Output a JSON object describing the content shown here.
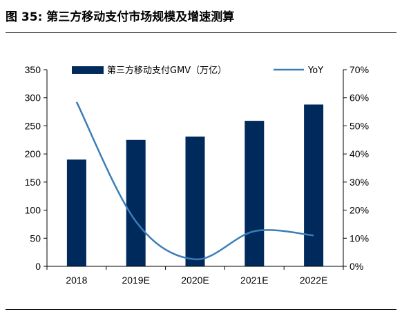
{
  "title": "图 35: 第三方移动支付市场规模及增速测算",
  "colors": {
    "bar": "#002A5C",
    "line": "#3A7DB8",
    "axis": "#000000"
  },
  "chart_data": {
    "type": "bar",
    "categories": [
      "2018",
      "2019E",
      "2020E",
      "2021E",
      "2022E"
    ],
    "series": [
      {
        "name": "第三方移动支付GMV（万亿）",
        "type": "bar",
        "axis": "left",
        "values": [
          190,
          225,
          231,
          259,
          288
        ]
      },
      {
        "name": "YoY",
        "type": "line",
        "axis": "right",
        "values": [
          0.585,
          0.16,
          0.025,
          0.125,
          0.11
        ]
      }
    ],
    "ylim": [
      0,
      350
    ],
    "yticks": [
      0,
      50,
      100,
      150,
      200,
      250,
      300,
      350
    ],
    "y2lim": [
      0,
      0.7
    ],
    "y2ticks": [
      "0%",
      "10%",
      "20%",
      "30%",
      "40%",
      "50%",
      "60%",
      "70%"
    ],
    "legend": "top",
    "grid": false
  }
}
